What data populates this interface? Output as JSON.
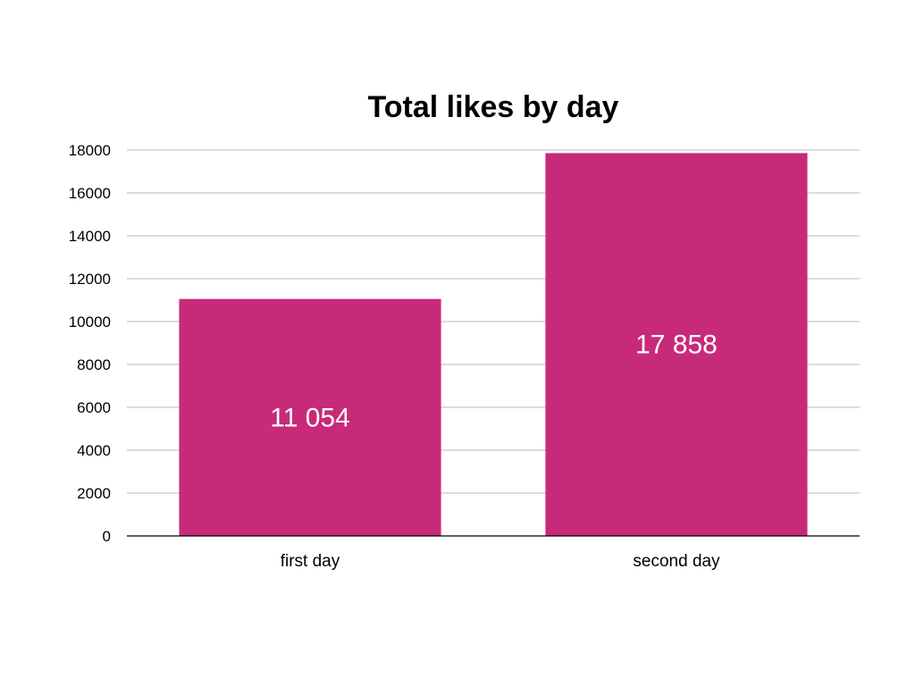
{
  "chart_data": {
    "type": "bar",
    "title": "Total likes by day",
    "xlabel": "",
    "ylabel": "",
    "categories": [
      "first day",
      "second day"
    ],
    "values": [
      11054,
      17858
    ],
    "data_labels": [
      "11 054",
      "17 858"
    ],
    "ylim": [
      0,
      18000
    ],
    "yticks": [
      0,
      2000,
      4000,
      6000,
      8000,
      10000,
      12000,
      14000,
      16000,
      18000
    ],
    "ytick_labels": [
      "0",
      "2000",
      "4000",
      "6000",
      "8000",
      "10000",
      "12000",
      "14000",
      "16000",
      "18000"
    ],
    "grid": true,
    "legend": "none",
    "bar_color": "#c82a7a"
  }
}
